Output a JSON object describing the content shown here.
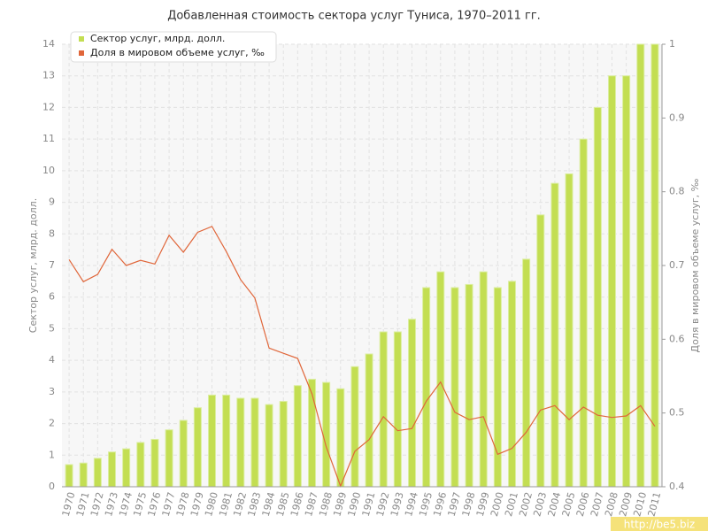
{
  "chart_data": {
    "type": "bar_line",
    "title": "Добавленная стоимость сектора услуг Туниса, 1970–2011 гг.",
    "y_label": "Сектор услуг, млрд. долл.",
    "y2_label": "Доля в мировом объеме услуг, ‰",
    "categories": [
      "1970",
      "1971",
      "1972",
      "1973",
      "1974",
      "1975",
      "1976",
      "1977",
      "1978",
      "1979",
      "1980",
      "1981",
      "1982",
      "1983",
      "1984",
      "1985",
      "1986",
      "1987",
      "1988",
      "1989",
      "1990",
      "1991",
      "1992",
      "1993",
      "1994",
      "1995",
      "1996",
      "1997",
      "1998",
      "1999",
      "2000",
      "2001",
      "2002",
      "2003",
      "2004",
      "2005",
      "2006",
      "2007",
      "2008",
      "2009",
      "2010",
      "2011"
    ],
    "series": [
      {
        "name": "Сектор услуг, млрд. долл.",
        "type": "bar",
        "color": "#c3de52",
        "values": [
          0.7,
          0.75,
          0.9,
          1.1,
          1.2,
          1.4,
          1.5,
          1.8,
          2.1,
          2.5,
          2.9,
          2.9,
          2.8,
          2.8,
          2.6,
          2.7,
          3.2,
          3.4,
          3.3,
          3.1,
          3.8,
          4.2,
          4.9,
          4.9,
          5.3,
          6.3,
          6.8,
          6.3,
          6.4,
          6.8,
          6.3,
          6.5,
          7.2,
          8.6,
          9.6,
          9.9,
          11,
          12,
          13,
          13,
          14,
          14
        ]
      },
      {
        "name": "Доля в мировом объеме услуг, ‰",
        "type": "line",
        "axis": "y2",
        "color": "#e0663a",
        "values": [
          0.708,
          0.678,
          0.688,
          0.722,
          0.7,
          0.707,
          0.702,
          0.741,
          0.718,
          0.745,
          0.753,
          0.719,
          0.681,
          0.656,
          0.588,
          0.581,
          0.574,
          0.526,
          0.454,
          0.401,
          0.448,
          0.464,
          0.495,
          0.476,
          0.479,
          0.516,
          0.542,
          0.501,
          0.491,
          0.495,
          0.444,
          0.452,
          0.474,
          0.504,
          0.51,
          0.491,
          0.508,
          0.497,
          0.494,
          0.496,
          0.51,
          0.482
        ]
      }
    ],
    "ylim": [
      0,
      14
    ],
    "yticks": [
      0,
      1,
      2,
      3,
      4,
      5,
      6,
      7,
      8,
      9,
      10,
      11,
      12,
      13,
      14
    ],
    "y2lim": [
      0.4,
      1
    ],
    "y2ticks": [
      0.4,
      0.5,
      0.6,
      0.7,
      0.8,
      0.9,
      1
    ],
    "grid": true,
    "legend": "top-left",
    "watermark": "http://be5.biz"
  }
}
